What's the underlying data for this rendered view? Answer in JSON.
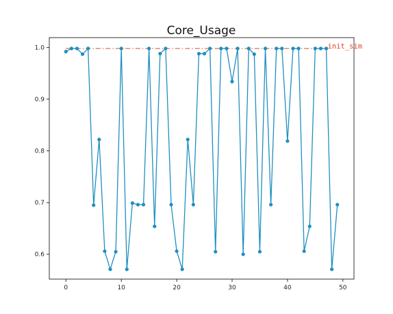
{
  "chart_data": {
    "type": "line",
    "title": "Core_Usage",
    "xlabel": "",
    "ylabel": "",
    "xlim": [
      -3,
      52
    ],
    "ylim": [
      0.552,
      1.019
    ],
    "x_ticks": [
      0,
      10,
      20,
      30,
      40,
      50
    ],
    "y_ticks": [
      0.6,
      0.7,
      0.8,
      0.9,
      1.0
    ],
    "y_tick_labels": [
      "0.6",
      "0.7",
      "0.8",
      "0.9",
      "1.0"
    ],
    "grid": false,
    "colors": {
      "series": "#1f8fbf",
      "reference": "#e0492a"
    },
    "series": [
      {
        "x": [
          0,
          1,
          2,
          3,
          4,
          5,
          6,
          7,
          8,
          9,
          10,
          11,
          12,
          13,
          14,
          15,
          16,
          17,
          18,
          19,
          20,
          21,
          22,
          23,
          24,
          25,
          26,
          27,
          28,
          29,
          30,
          31,
          32,
          33,
          34,
          35,
          36,
          37,
          38,
          39,
          40,
          41,
          42,
          43,
          44,
          45,
          46,
          47,
          48,
          49
        ],
        "values": [
          0.992,
          0.998,
          0.998,
          0.987,
          0.998,
          0.695,
          0.822,
          0.606,
          0.571,
          0.605,
          0.998,
          0.571,
          0.699,
          0.696,
          0.696,
          0.998,
          0.654,
          0.988,
          0.998,
          0.696,
          0.606,
          0.571,
          0.822,
          0.696,
          0.988,
          0.988,
          0.998,
          0.605,
          0.998,
          0.998,
          0.934,
          0.998,
          0.6,
          0.998,
          0.987,
          0.605,
          0.998,
          0.696,
          0.998,
          0.998,
          0.819,
          0.998,
          0.998,
          0.606,
          0.654,
          0.998,
          0.998,
          0.998,
          0.571,
          0.696
        ]
      }
    ],
    "reference_line": {
      "name": "init_sim",
      "y": 0.998,
      "x_start": 0,
      "x_end": 47,
      "style": "dashdot"
    }
  }
}
